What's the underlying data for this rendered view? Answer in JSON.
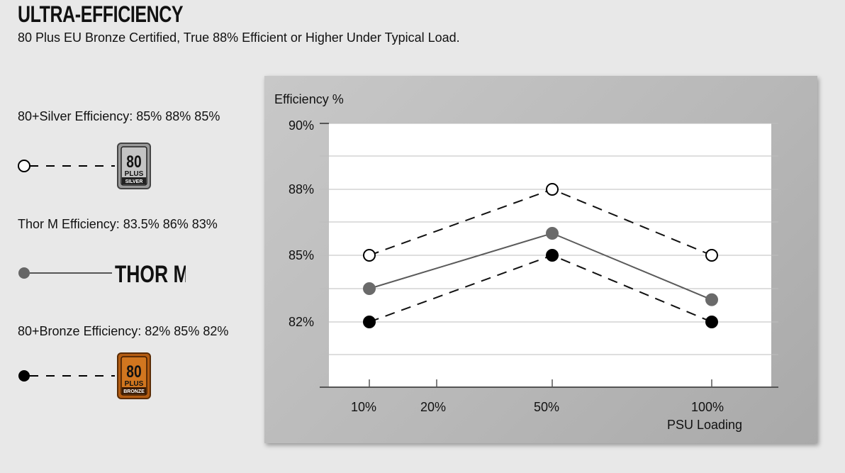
{
  "header": {
    "title": "ULTRA-EFFICIENCY",
    "subtitle": "80 Plus EU Bronze Certified, True 88% Efficient or Higher Under Typical Load."
  },
  "legend": {
    "silver": {
      "label": "80+Silver Efficiency: 85% 88% 85%",
      "badge_number": "80",
      "badge_plus": "PLUS",
      "badge_tier": "SILVER"
    },
    "thor": {
      "label": "Thor M Efficiency:  83.5% 86% 83%",
      "logo_text": "THOR M"
    },
    "bronze": {
      "label": "80+Bronze Efficiency: 82% 85% 82%",
      "badge_number": "80",
      "badge_plus": "PLUS",
      "badge_tier": "BRONZE"
    }
  },
  "chart_data": {
    "type": "line",
    "ylabel": "Efficiency %",
    "xlabel": "PSU Loading",
    "x_ticks": [
      "10%",
      "20%",
      "50%",
      "100%"
    ],
    "y_ticks": [
      "90%",
      "88%",
      "85%",
      "82%"
    ],
    "series": [
      {
        "name": "80+Silver",
        "x": [
          "10%",
          "50%",
          "100%"
        ],
        "values": [
          85,
          88,
          85
        ],
        "style": "dashed",
        "marker": "open-circle",
        "color": "#000000"
      },
      {
        "name": "Thor M",
        "x": [
          "10%",
          "50%",
          "100%"
        ],
        "values": [
          83.5,
          86,
          83
        ],
        "style": "solid",
        "marker": "gray-circle",
        "color": "#666666"
      },
      {
        "name": "80+Bronze",
        "x": [
          "10%",
          "50%",
          "100%"
        ],
        "values": [
          82,
          85,
          82
        ],
        "style": "dashed",
        "marker": "filled-circle",
        "color": "#000000"
      }
    ],
    "grid": true,
    "legend_position": "left"
  }
}
